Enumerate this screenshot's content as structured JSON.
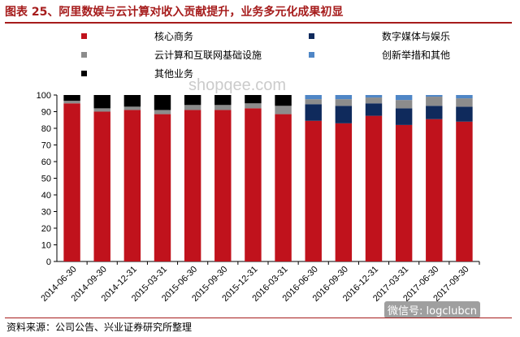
{
  "header": {
    "title": "图表 25、阿里数娱与云计算对收入贡献提升，业务多元化成果初显"
  },
  "footer": {
    "source": "资料来源：公司公告、兴业证券研究所整理",
    "brand": "微信号: logclubcn"
  },
  "watermark": "shopqee.com",
  "chart_data": {
    "type": "bar",
    "stacked": true,
    "ylim": [
      0,
      100
    ],
    "yticks": [
      0,
      10,
      20,
      30,
      40,
      50,
      60,
      70,
      80,
      90,
      100
    ],
    "grid": false,
    "legend_position": "top",
    "categories": [
      "2014-06-30",
      "2014-09-30",
      "2014-12-31",
      "2015-03-31",
      "2015-06-30",
      "2015-09-30",
      "2015-12-31",
      "2016-03-31",
      "2016-06-30",
      "2016-09-30",
      "2016-12-31",
      "2017-03-31",
      "2017-06-30",
      "2017-09-30"
    ],
    "series": [
      {
        "name": "核心商务",
        "color": "#c0121c",
        "values": [
          95,
          90,
          91,
          88.5,
          91,
          91,
          92,
          88.5,
          84.5,
          83,
          87.5,
          82,
          85.5,
          84
        ]
      },
      {
        "name": "数字媒体与娱乐",
        "color": "#0f2a5c",
        "values": [
          0,
          0,
          0,
          0,
          0,
          0,
          0,
          0,
          10,
          10.5,
          7.5,
          10,
          8,
          9
        ]
      },
      {
        "name": "云计算和互联网基础设施",
        "color": "#8c8c8c",
        "values": [
          1.5,
          2,
          2,
          2.5,
          3,
          3,
          3,
          5,
          3,
          4,
          3.5,
          5,
          5.5,
          5
        ]
      },
      {
        "name": "创新举措和其他",
        "color": "#4f86c6",
        "values": [
          0,
          0,
          0,
          0,
          0,
          0,
          0,
          0,
          2.5,
          2.5,
          1.5,
          3,
          1,
          2
        ]
      },
      {
        "name": "其他业务",
        "color": "#000000",
        "values": [
          3.5,
          8,
          7,
          9,
          6,
          6,
          5,
          6.5,
          0,
          0,
          0,
          0,
          0,
          0
        ]
      }
    ]
  }
}
